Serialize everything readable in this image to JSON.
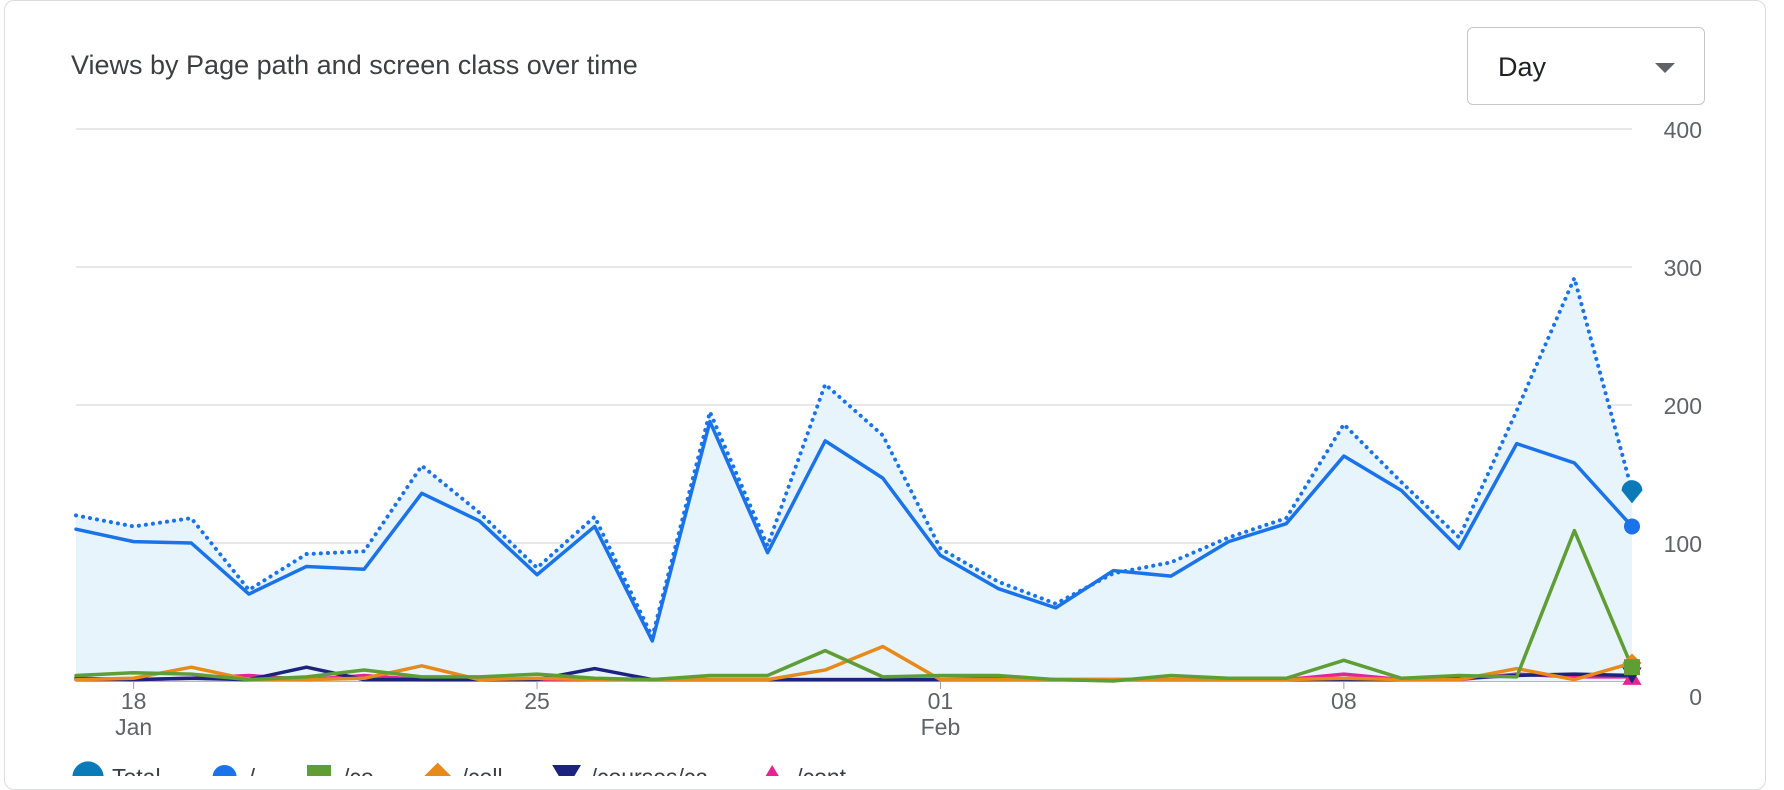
{
  "card": {
    "title": "Views by Page path and screen class over time"
  },
  "granularity": {
    "selected": "Day"
  },
  "colors": {
    "total": "#1a73e8",
    "area": "#e8f4fc",
    "grid": "#e0e0e0"
  },
  "chart_data": {
    "type": "line",
    "title": "Views by Page path and screen class over time",
    "ylim": [
      0,
      400
    ],
    "yticks": [
      0,
      100,
      200,
      300,
      400
    ],
    "xticks": [
      {
        "index": 1,
        "day": "18",
        "month": "Jan"
      },
      {
        "index": 8,
        "day": "25",
        "month": ""
      },
      {
        "index": 15,
        "day": "01",
        "month": "Feb"
      },
      {
        "index": 22,
        "day": "08",
        "month": ""
      }
    ],
    "x": [
      "Jan 17",
      "Jan 18",
      "Jan 19",
      "Jan 20",
      "Jan 21",
      "Jan 22",
      "Jan 23",
      "Jan 24",
      "Jan 25",
      "Jan 26",
      "Jan 27",
      "Jan 28",
      "Jan 29",
      "Jan 30",
      "Jan 31",
      "Feb 01",
      "Feb 02",
      "Feb 03",
      "Feb 04",
      "Feb 05",
      "Feb 06",
      "Feb 07",
      "Feb 08",
      "Feb 09",
      "Feb 10",
      "Feb 11",
      "Feb 12",
      "Feb 13"
    ],
    "series": [
      {
        "name": "Total",
        "color": "#1a73e8",
        "style": "dotted",
        "marker": "pin",
        "markerColor": "#0b7ab8",
        "values": [
          120,
          112,
          118,
          66,
          92,
          94,
          156,
          122,
          82,
          119,
          32,
          195,
          98,
          215,
          178,
          96,
          72,
          56,
          78,
          86,
          104,
          118,
          186,
          144,
          104,
          196,
          292,
          138
        ]
      },
      {
        "name": "/",
        "color": "#1a73e8",
        "style": "solid",
        "marker": "circle",
        "markerColor": "#1a73e8",
        "values": [
          110,
          101,
          100,
          63,
          83,
          81,
          136,
          116,
          77,
          112,
          29,
          188,
          93,
          174,
          147,
          91,
          67,
          53,
          80,
          76,
          101,
          114,
          163,
          138,
          96,
          172,
          158,
          112
        ]
      },
      {
        "name": "/co",
        "color": "#5e9e34",
        "style": "solid",
        "marker": "square",
        "markerColor": "#5e9e34",
        "values": [
          4,
          6,
          5,
          1,
          3,
          8,
          3,
          3,
          5,
          2,
          1,
          4,
          4,
          22,
          3,
          4,
          4,
          1,
          0,
          4,
          2,
          2,
          15,
          2,
          4,
          3,
          109,
          10
        ]
      },
      {
        "name": "/coll",
        "color": "#e8891c",
        "style": "solid",
        "marker": "diamond",
        "markerColor": "#e8891c",
        "values": [
          1,
          2,
          10,
          1,
          1,
          2,
          11,
          1,
          2,
          1,
          1,
          1,
          1,
          8,
          25,
          1,
          1,
          1,
          1,
          1,
          1,
          1,
          2,
          1,
          1,
          9,
          1,
          13
        ]
      },
      {
        "name": "/courses/ca",
        "color": "#1c237e",
        "style": "solid",
        "marker": "triangle-down",
        "markerColor": "#1c237e",
        "values": [
          2,
          1,
          2,
          1,
          10,
          1,
          1,
          1,
          1,
          9,
          1,
          1,
          1,
          1,
          1,
          1,
          1,
          1,
          1,
          1,
          1,
          1,
          1,
          1,
          2,
          4,
          5,
          4
        ]
      },
      {
        "name": "/cont",
        "color": "#e52592",
        "style": "solid",
        "marker": "triangle-up",
        "markerColor": "#e52592",
        "values": [
          1,
          1,
          2,
          4,
          1,
          4,
          1,
          1,
          1,
          1,
          1,
          1,
          1,
          1,
          1,
          1,
          2,
          1,
          1,
          1,
          1,
          1,
          5,
          1,
          1,
          5,
          3,
          3
        ]
      }
    ],
    "legend": [
      "Total",
      "/",
      "/co",
      "/coll",
      "/courses/ca",
      "/cont"
    ],
    "legend_position": "bottom-left",
    "grid": true
  }
}
